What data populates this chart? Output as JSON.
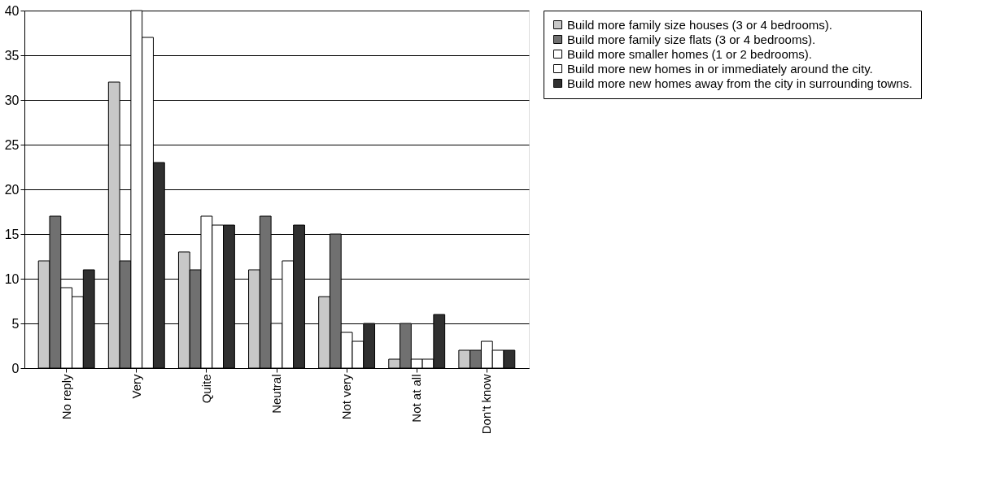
{
  "chart_data": {
    "type": "bar",
    "categories": [
      "No reply",
      "Very",
      "Quite",
      "Neutral",
      "Not very",
      "Not at all",
      "Don't know"
    ],
    "series": [
      {
        "name": "Build more family size houses (3 or 4 bedrooms).",
        "color": "#c8c8c8",
        "values": [
          12,
          32,
          13,
          11,
          8,
          1,
          2
        ]
      },
      {
        "name": "Build more family size flats (3 or 4 bedrooms).",
        "color": "#707070",
        "values": [
          17,
          12,
          11,
          17,
          15,
          5,
          2
        ]
      },
      {
        "name": "Build more smaller homes (1 or 2 bedrooms).",
        "color": "#ffffff",
        "values": [
          9,
          40,
          17,
          5,
          4,
          1,
          3
        ]
      },
      {
        "name": "Build more new homes in or immediately around the city.",
        "color": "#ffffff",
        "values": [
          8,
          37,
          16,
          12,
          3,
          1,
          2
        ]
      },
      {
        "name": "Build more new homes away from the city in surrounding towns.",
        "color": "#303030",
        "values": [
          11,
          23,
          16,
          16,
          5,
          6,
          2
        ]
      }
    ],
    "ylim": [
      0,
      40
    ],
    "yticks": [
      0,
      5,
      10,
      15,
      20,
      25,
      30,
      35,
      40
    ],
    "grid": "y",
    "legend": "right"
  }
}
